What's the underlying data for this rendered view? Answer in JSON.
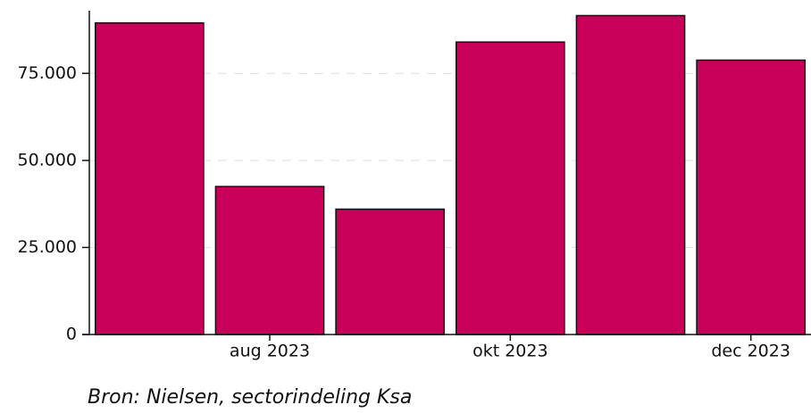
{
  "chart_data": {
    "type": "bar",
    "categories": [
      null,
      "aug 2023",
      null,
      "okt 2023",
      null,
      "dec 2023"
    ],
    "values": [
      89500,
      42500,
      36000,
      84000,
      91600,
      78800
    ],
    "color": "#c8005a",
    "ylim": [
      0,
      93000
    ],
    "yticks": [
      0,
      {
        "value": 25000,
        "label": "25.000"
      },
      {
        "value": 50000,
        "label": "50.000"
      },
      {
        "value": 75000,
        "label": "75.000"
      }
    ],
    "grid": true,
    "source": "Bron: Nielsen, sectorindeling Ksa"
  }
}
